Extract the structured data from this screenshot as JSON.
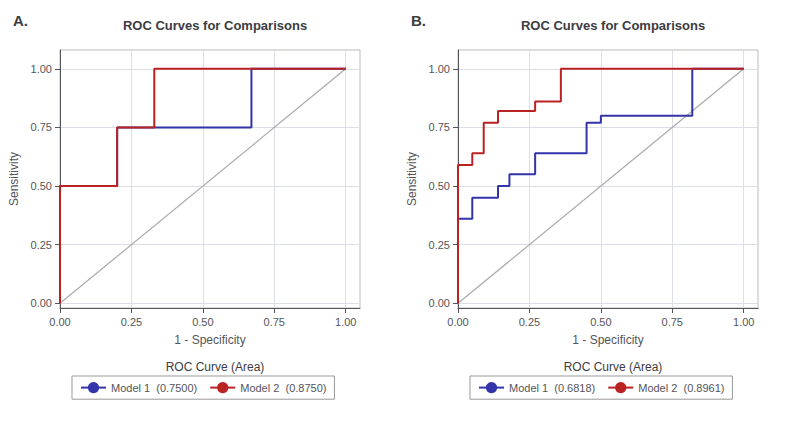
{
  "chart_data": [
    {
      "type": "line",
      "title": "ROC Curves for Comparisons",
      "annotation": "A.",
      "xlabel": "1 - Specificity",
      "ylabel": "Sensitivity",
      "legend_title": "ROC Curve (Area)",
      "legend": "bottom",
      "grid": true,
      "xlim": [
        0.0,
        1.05
      ],
      "ylim": [
        -0.02,
        1.08
      ],
      "xticks": [
        {
          "value": 0.0,
          "label": "0.00"
        },
        0.25,
        {
          "value": 0.5,
          "label": "0.50"
        },
        0.75,
        {
          "value": 1.0,
          "label": "1.00"
        }
      ],
      "yticks": [
        {
          "value": 0.0,
          "label": "0.00"
        },
        0.25,
        {
          "value": 0.5,
          "label": "0.50"
        },
        0.75,
        {
          "value": 1.0,
          "label": "1.00"
        }
      ],
      "series": [
        {
          "type": "line",
          "color": "#aaaaaa",
          "x": [
            0,
            1
          ],
          "values": [
            0,
            1
          ]
        },
        {
          "name": "Model 1  (0.7500)",
          "type": "step",
          "color": "#3333aa",
          "x": [
            0.0,
            0.0,
            0.2,
            0.2,
            0.33,
            0.33,
            0.67,
            0.67,
            1.0
          ],
          "values": [
            0.0,
            0.5,
            0.5,
            0.75,
            0.75,
            0.75,
            0.75,
            1.0,
            1.0
          ]
        },
        {
          "name": "Model 2  (0.8750)",
          "type": "step",
          "color": "#bb2222",
          "x": [
            0.0,
            0.0,
            0.2,
            0.2,
            0.33,
            0.33,
            1.0
          ],
          "values": [
            0.0,
            0.5,
            0.5,
            0.75,
            0.75,
            1.0,
            1.0
          ]
        }
      ]
    },
    {
      "type": "line",
      "title": "ROC Curves for Comparisons",
      "annotation": "B.",
      "xlabel": "1 - Specificity",
      "ylabel": "Sensitivity",
      "legend_title": "ROC Curve (Area)",
      "legend": "bottom",
      "grid": true,
      "xlim": [
        0.0,
        1.05
      ],
      "ylim": [
        -0.02,
        1.08
      ],
      "xticks": [
        {
          "value": 0.0,
          "label": "0.00"
        },
        0.25,
        {
          "value": 0.5,
          "label": "0.50"
        },
        0.75,
        {
          "value": 1.0,
          "label": "1.00"
        }
      ],
      "yticks": [
        {
          "value": 0.0,
          "label": "0.00"
        },
        0.25,
        {
          "value": 0.5,
          "label": "0.50"
        },
        0.75,
        {
          "value": 1.0,
          "label": "1.00"
        }
      ],
      "series": [
        {
          "type": "line",
          "color": "#aaaaaa",
          "x": [
            0,
            1
          ],
          "values": [
            0,
            1
          ]
        },
        {
          "name": "Model 1  (0.6818)",
          "type": "step",
          "color": "#3333aa",
          "x": [
            0.0,
            0.0,
            0.05,
            0.05,
            0.14,
            0.14,
            0.18,
            0.18,
            0.27,
            0.27,
            0.36,
            0.36,
            0.45,
            0.45,
            0.5,
            0.5,
            0.55,
            0.55,
            0.82,
            0.82,
            1.0
          ],
          "values": [
            0.0,
            0.36,
            0.36,
            0.45,
            0.45,
            0.5,
            0.5,
            0.55,
            0.55,
            0.64,
            0.64,
            0.64,
            0.64,
            0.77,
            0.77,
            0.8,
            0.8,
            0.8,
            0.8,
            1.0,
            1.0
          ]
        },
        {
          "name": "Model 2  (0.8961)",
          "type": "step",
          "color": "#bb2222",
          "x": [
            0.0,
            0.0,
            0.05,
            0.05,
            0.09,
            0.09,
            0.14,
            0.14,
            0.27,
            0.27,
            0.36,
            0.36,
            0.82,
            0.82,
            1.0
          ],
          "values": [
            0.0,
            0.59,
            0.59,
            0.64,
            0.64,
            0.77,
            0.77,
            0.82,
            0.82,
            0.86,
            0.86,
            1.0,
            1.0,
            1.0,
            1.0
          ]
        }
      ]
    }
  ]
}
